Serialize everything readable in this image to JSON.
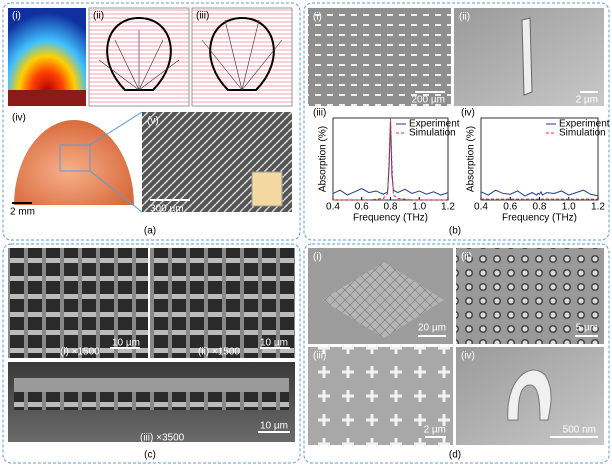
{
  "panel_a": {
    "label": "(a)",
    "sub": [
      "(i)",
      "(ii)",
      "(iii)",
      "(iv)",
      "(v)"
    ],
    "scale_bars": [
      "2 mm",
      "300 µm"
    ]
  },
  "panel_b": {
    "label": "(b)",
    "sub": [
      "(i)",
      "(ii)"
    ],
    "scale_bars": [
      "200 µm",
      "2 µm"
    ]
  },
  "panel_c": {
    "label": "(c)",
    "captions": [
      "(i) ×1500",
      "(ii) ×1500",
      "(iii) ×3500"
    ],
    "scale_bars": [
      "10 µm",
      "10 µm",
      "10 µm"
    ]
  },
  "panel_d": {
    "label": "(d)",
    "sub": [
      "(i)",
      "(ii)",
      "(iii)",
      "(iv)"
    ],
    "scale_bars": [
      "20 µm",
      "5 µm",
      "2 µm",
      "500 nm"
    ]
  },
  "chart_data": [
    {
      "type": "line",
      "label": "(iii)",
      "xlabel": "Frequency (THz)",
      "ylabel": "Absorption (%)",
      "x": [
        0.4,
        0.45,
        0.5,
        0.55,
        0.6,
        0.65,
        0.7,
        0.75,
        0.78,
        0.79,
        0.8,
        0.81,
        0.82,
        0.85,
        0.9,
        0.95,
        1.0,
        1.05,
        1.1,
        1.15,
        1.2
      ],
      "series": [
        {
          "name": "Experiment",
          "color": "#1f3a93",
          "dash": false,
          "values": [
            8,
            12,
            6,
            10,
            14,
            9,
            11,
            7,
            10,
            40,
            95,
            30,
            12,
            9,
            13,
            8,
            11,
            7,
            10,
            6,
            9
          ]
        },
        {
          "name": "Simulation",
          "color": "#e0303a",
          "dash": true,
          "values": [
            0,
            0,
            0,
            0,
            0,
            0,
            1,
            2,
            8,
            50,
            100,
            45,
            6,
            2,
            1,
            0,
            0,
            0,
            0,
            0,
            0
          ]
        }
      ],
      "xlim": [
        0.4,
        1.2
      ],
      "xticks": [
        0.4,
        0.6,
        0.8,
        {
          "value": 1,
          "label": "1.0"
        },
        1.2
      ],
      "ylim": [
        0,
        100
      ],
      "legend": "upper-right"
    },
    {
      "type": "line",
      "label": "(iv)",
      "xlabel": "Frequency (THz)",
      "ylabel": "Absorption (%)",
      "x": [
        0.4,
        0.45,
        0.5,
        0.55,
        0.6,
        0.65,
        0.7,
        0.75,
        0.78,
        0.79,
        0.8,
        0.81,
        0.82,
        0.85,
        0.9,
        0.95,
        1.0,
        1.05,
        1.1,
        1.15,
        1.2
      ],
      "series": [
        {
          "name": "Experiment",
          "color": "#1f3a93",
          "dash": false,
          "values": [
            10,
            6,
            12,
            8,
            7,
            11,
            5,
            9,
            6,
            8,
            7,
            10,
            6,
            9,
            8,
            11,
            6,
            9,
            12,
            7,
            5
          ]
        },
        {
          "name": "Simulation",
          "color": "#e0303a",
          "dash": true,
          "values": [
            1,
            1,
            1,
            1,
            1,
            1,
            1,
            1,
            1,
            1,
            1,
            1,
            1,
            1,
            1,
            1,
            1,
            1,
            1,
            1,
            1
          ]
        }
      ],
      "xlim": [
        0.4,
        1.2
      ],
      "xticks": [
        0.4,
        0.6,
        0.8,
        {
          "value": 1,
          "label": "1.0"
        },
        1.2
      ],
      "ylim": [
        0,
        100
      ],
      "legend": "upper-right"
    }
  ]
}
